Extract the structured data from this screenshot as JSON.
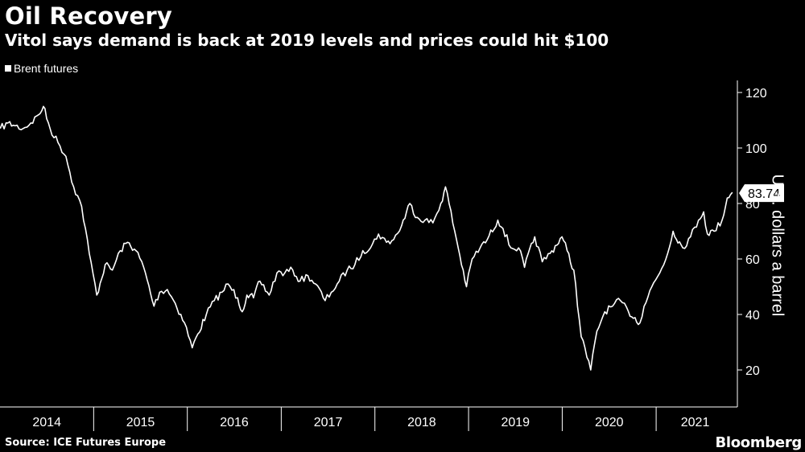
{
  "header": {
    "title": "Oil Recovery",
    "subtitle": "Vitol says demand is back at 2019 levels and prices could hit $100"
  },
  "footer": {
    "source": "Source: ICE Futures Europe",
    "brand": "Bloomberg"
  },
  "chart_data": {
    "type": "line",
    "title": "Oil Recovery",
    "subtitle": "Vitol says demand is back at 2019 levels and prices could hit $100",
    "ylabel": "U.S. dollars a barrel",
    "xlabel": "",
    "ylim": [
      10,
      125
    ],
    "y_ticks": [
      20,
      40,
      60,
      80,
      100,
      120
    ],
    "x_tick_labels": [
      "2014",
      "2015",
      "2016",
      "2017",
      "2018",
      "2019",
      "2020",
      "2021"
    ],
    "grid": false,
    "legend_position": "top-left",
    "last_value_label": "83.74",
    "series": [
      {
        "name": "Brent futures",
        "color": "#ffffff",
        "x": [
          "2014-01-02",
          "2014-02-01",
          "2014-03-01",
          "2014-04-01",
          "2014-05-01",
          "2014-06-01",
          "2014-06-19",
          "2014-07-15",
          "2014-08-15",
          "2014-09-15",
          "2014-10-15",
          "2014-11-15",
          "2014-12-15",
          "2015-01-13",
          "2015-02-15",
          "2015-03-15",
          "2015-04-15",
          "2015-05-13",
          "2015-06-15",
          "2015-07-15",
          "2015-08-24",
          "2015-09-15",
          "2015-10-15",
          "2015-11-15",
          "2015-12-21",
          "2016-01-20",
          "2016-02-11",
          "2016-03-15",
          "2016-04-15",
          "2016-05-15",
          "2016-06-08",
          "2016-07-15",
          "2016-08-02",
          "2016-08-20",
          "2016-09-15",
          "2016-10-10",
          "2016-11-15",
          "2016-12-15",
          "2017-01-15",
          "2017-02-15",
          "2017-03-15",
          "2017-04-15",
          "2017-05-15",
          "2017-06-21",
          "2017-07-15",
          "2017-08-15",
          "2017-09-15",
          "2017-10-15",
          "2017-11-15",
          "2017-12-15",
          "2018-01-15",
          "2018-02-15",
          "2018-03-15",
          "2018-04-15",
          "2018-05-17",
          "2018-06-15",
          "2018-07-15",
          "2018-08-15",
          "2018-09-15",
          "2018-10-03",
          "2018-11-15",
          "2018-12-24",
          "2019-01-15",
          "2019-02-15",
          "2019-03-15",
          "2019-04-25",
          "2019-05-15",
          "2019-06-15",
          "2019-07-15",
          "2019-08-07",
          "2019-09-16",
          "2019-10-15",
          "2019-11-15",
          "2019-12-31",
          "2020-01-20",
          "2020-02-15",
          "2020-03-15",
          "2020-04-21",
          "2020-05-15",
          "2020-06-15",
          "2020-07-15",
          "2020-08-15",
          "2020-09-15",
          "2020-10-30",
          "2020-11-15",
          "2020-12-15",
          "2021-01-15",
          "2021-02-15",
          "2021-03-08",
          "2021-04-15",
          "2021-05-15",
          "2021-06-15",
          "2021-07-05",
          "2021-07-20",
          "2021-08-15",
          "2021-09-15",
          "2021-10-05",
          "2021-10-25"
        ],
        "values": [
          107,
          109,
          108,
          107,
          109,
          112,
          115,
          107,
          102,
          97,
          86,
          79,
          62,
          47,
          58,
          56,
          63,
          66,
          63,
          57,
          43,
          48,
          49,
          44,
          37,
          28,
          33,
          40,
          45,
          48,
          51,
          46,
          41,
          47,
          46,
          52,
          47,
          55,
          55,
          56,
          52,
          54,
          51,
          45,
          48,
          52,
          56,
          58,
          63,
          64,
          69,
          66,
          67,
          72,
          80,
          75,
          74,
          73,
          80,
          86,
          67,
          50,
          60,
          64,
          67,
          74,
          71,
          64,
          64,
          57,
          68,
          59,
          62,
          68,
          63,
          56,
          32,
          20,
          34,
          41,
          43,
          45,
          41,
          37,
          43,
          50,
          55,
          62,
          70,
          64,
          68,
          74,
          77,
          69,
          70,
          74,
          82,
          84
        ]
      }
    ]
  }
}
